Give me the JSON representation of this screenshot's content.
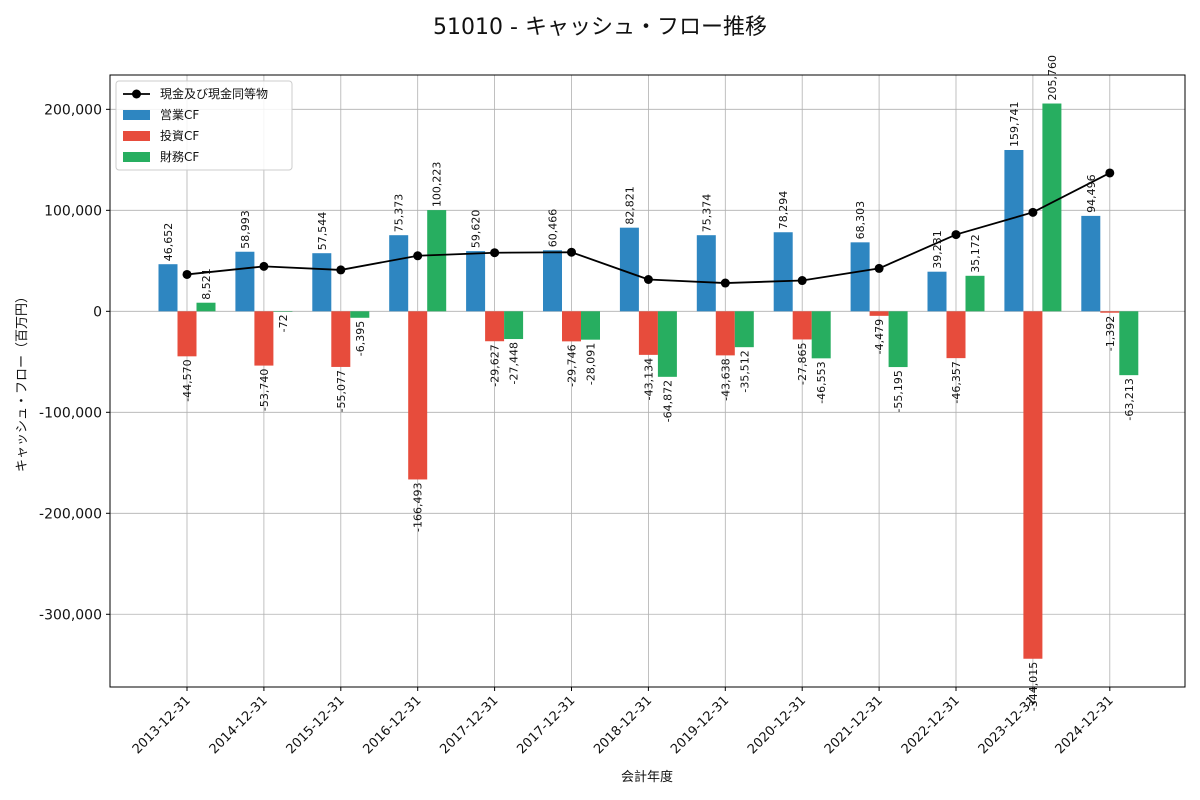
{
  "chart_data": {
    "type": "bar",
    "title": "51010 - キャッシュ・フロー推移",
    "xlabel": "会計年度",
    "ylabel": "キャッシュ・フロー（百万円）",
    "ylim": [
      -372000,
      234000
    ],
    "yticks": [
      -300000,
      -200000,
      -100000,
      0,
      100000,
      200000
    ],
    "ytick_labels": [
      "-300,000",
      "-200,000",
      "-100,000",
      "0",
      "100,000",
      "200,000"
    ],
    "grid": true,
    "legend_position": "top-left",
    "categories": [
      "2013-12-31",
      "2014-12-31",
      "2015-12-31",
      "2016-12-31",
      "2017-12-31",
      "2017-12-31",
      "2018-12-31",
      "2019-12-31",
      "2020-12-31",
      "2021-12-31",
      "2022-12-31",
      "2023-12-31",
      "2024-12-31"
    ],
    "series": [
      {
        "name": "営業CF",
        "color": "#2e86c1",
        "values": [
          46652,
          58993,
          57544,
          75373,
          59620,
          60466,
          82821,
          75374,
          78294,
          68303,
          39231,
          159741,
          94496
        ]
      },
      {
        "name": "投資CF",
        "color": "#e74c3c",
        "values": [
          -44570,
          -53740,
          -55077,
          -166493,
          -29627,
          -29746,
          -43134,
          -43638,
          -27865,
          -4479,
          -46357,
          -344015,
          -1392
        ]
      },
      {
        "name": "財務CF",
        "color": "#27ae60",
        "values": [
          8521,
          -72,
          -6395,
          100223,
          -27448,
          -28091,
          -64872,
          -35512,
          -46553,
          -55195,
          35172,
          205760,
          -63213
        ]
      }
    ],
    "line": {
      "name": "現金及び現金同等物",
      "color": "#000000",
      "values": [
        36500,
        44500,
        41000,
        55000,
        58000,
        58500,
        31500,
        28000,
        30500,
        42500,
        76000,
        98000,
        137000
      ]
    }
  }
}
